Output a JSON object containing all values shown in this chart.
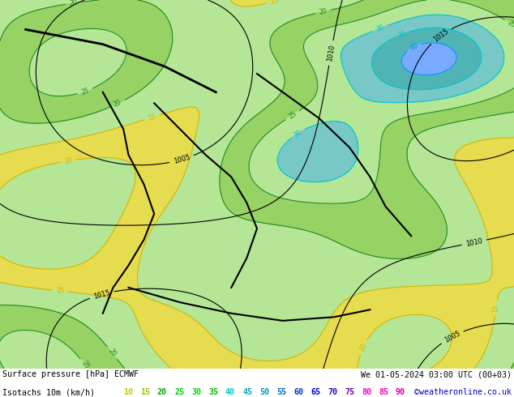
{
  "title_line1": "Surface pressure [hPa] ECMWF",
  "date_str": "We 01-05-2024 03:00 UTC (00+03)",
  "isotach_line_label": "Isotachs 10m (km/h)",
  "credit": "©weatheronline.co.uk",
  "isotach_levels": [
    10,
    15,
    20,
    25,
    30,
    35,
    40,
    45,
    50,
    55,
    60,
    65,
    70,
    75,
    80,
    85,
    90
  ],
  "isotach_label_colors": [
    "#c8c800",
    "#96c800",
    "#00aa00",
    "#00c800",
    "#00dc00",
    "#00b400",
    "#00c8c8",
    "#00aaaa",
    "#0096c8",
    "#0064c8",
    "#0032c8",
    "#0000c8",
    "#3200c8",
    "#6400aa",
    "#ff00c8",
    "#ff00aa",
    "#dc0096"
  ],
  "bg_color_land": "#b4e696",
  "bg_color_sea": "#d8d8d8",
  "bg_color_fig": "#b4e696",
  "bottom_bg": "#ffffff",
  "contour_colors": {
    "10": "#e6c800",
    "15": "#e6c800",
    "20": "#228b22",
    "25": "#228b22",
    "30": "#00c8c8",
    "35": "#00c8c8",
    "40": "#00aaff",
    "45": "#00aaff",
    "50": "#0055ff",
    "55": "#0055ff",
    "60": "#0000c8",
    "65": "#0000c8",
    "70": "#6400c8",
    "75": "#6400c8",
    "80": "#aa00aa",
    "85": "#aa00aa",
    "90": "#ff00ff"
  },
  "pressure_color": "#000000",
  "border_color": "#000000",
  "figwidth": 6.34,
  "figheight": 4.9,
  "dpi": 100
}
